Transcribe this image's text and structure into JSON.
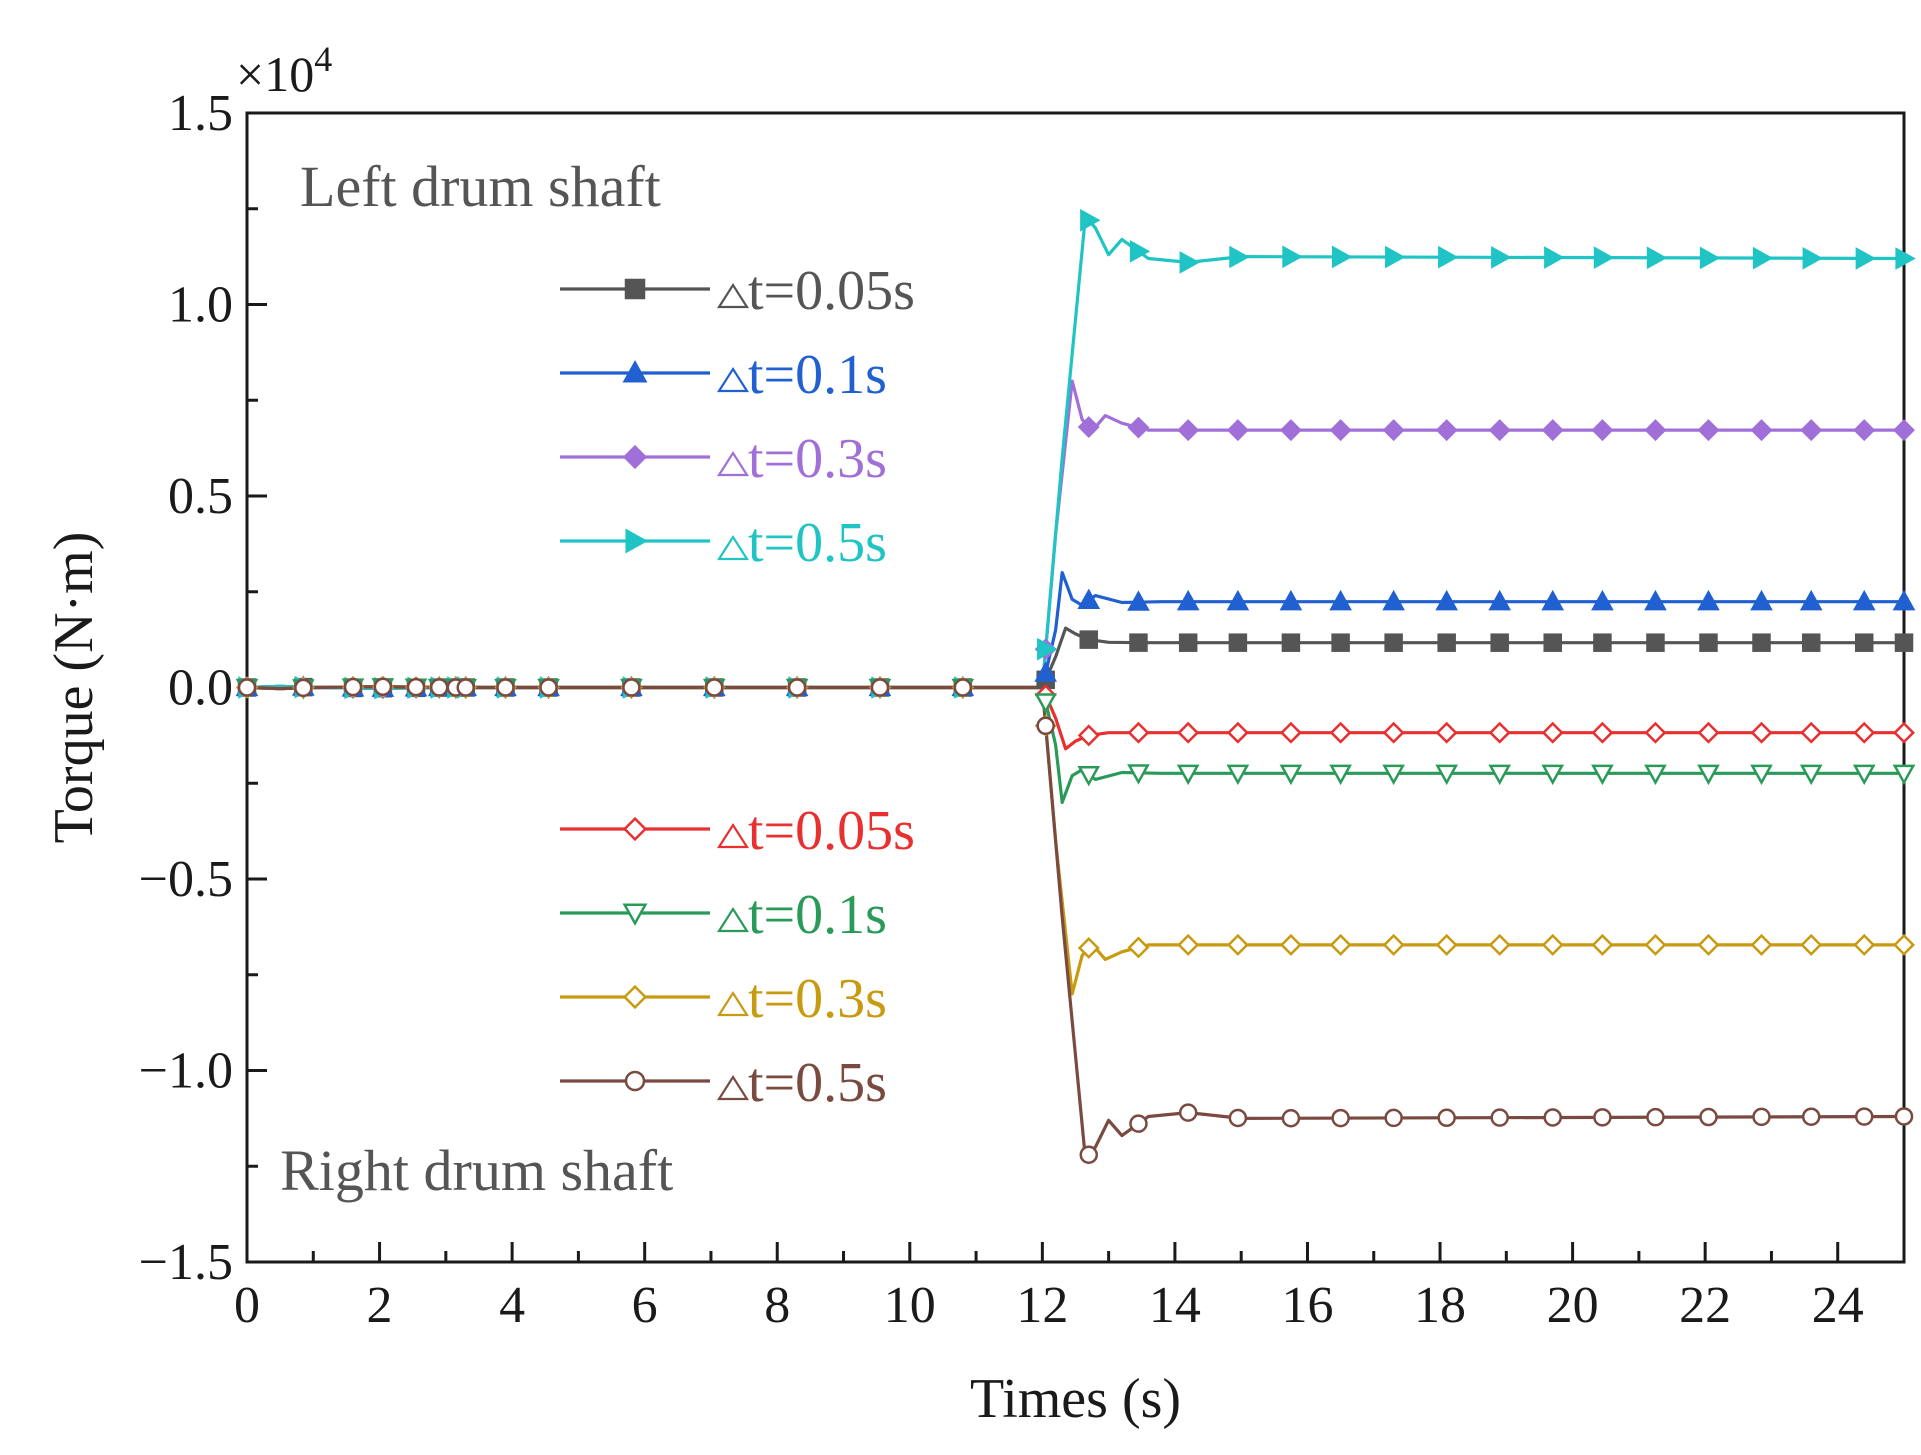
{
  "chart_data": {
    "type": "line",
    "title": "",
    "xlabel": "Times (s)",
    "ylabel": "Torque (N·m)",
    "xlim": [
      0,
      25
    ],
    "ylim": [
      -1.5,
      1.5
    ],
    "y_multiplier": "×10",
    "y_multiplier_exp": "4",
    "x_ticks": [
      0,
      2,
      4,
      6,
      8,
      10,
      12,
      14,
      16,
      18,
      20,
      22,
      24
    ],
    "y_ticks": [
      -1.5,
      -1.0,
      -0.5,
      0.0,
      0.5,
      1.0,
      1.5
    ],
    "y_tick_labels": [
      "−1.5",
      "−1.0",
      "−0.5",
      "0.0",
      "0.5",
      "1.0",
      "1.5"
    ],
    "grid": false,
    "annotations": [
      {
        "text": "Left drum shaft",
        "x": 0.8,
        "y": 1.31
      },
      {
        "text": "Right drum shaft",
        "x": 0.5,
        "y": -1.26
      }
    ],
    "series": [
      {
        "name": "t=0.05s",
        "group": "left",
        "color": "#555555",
        "marker": "square",
        "filled": true,
        "x": [
          0,
          0.5,
          1,
          2,
          3,
          4,
          5,
          6,
          7,
          8,
          9,
          10,
          11,
          12,
          12.2,
          12.35,
          12.5,
          12.7,
          13,
          13.5,
          14,
          25
        ],
        "y": [
          0,
          0.003,
          0,
          -0.002,
          0,
          0,
          0,
          0,
          0,
          0,
          0,
          0,
          0,
          0,
          0.08,
          0.155,
          0.14,
          0.125,
          0.118,
          0.117,
          0.117,
          0.117
        ]
      },
      {
        "name": "t=0.1s",
        "group": "left",
        "color": "#2060d0",
        "marker": "triangle-up",
        "filled": true,
        "x": [
          0,
          0.5,
          1,
          2,
          3,
          4,
          5,
          6,
          7,
          8,
          9,
          10,
          11,
          12,
          12.2,
          12.3,
          12.45,
          12.6,
          12.8,
          13.2,
          13.8,
          25
        ],
        "y": [
          0,
          0.003,
          0,
          -0.002,
          0,
          0,
          0,
          0,
          0,
          0,
          0,
          0,
          0,
          0,
          0.15,
          0.3,
          0.23,
          0.215,
          0.24,
          0.222,
          0.224,
          0.224
        ]
      },
      {
        "name": "t=0.3s",
        "group": "left",
        "color": "#a070d8",
        "marker": "diamond",
        "filled": true,
        "x": [
          0,
          0.5,
          1,
          2,
          3,
          4,
          5,
          6,
          7,
          8,
          9,
          10,
          11,
          12,
          12.2,
          12.45,
          12.6,
          12.75,
          12.95,
          13.2,
          13.6,
          25
        ],
        "y": [
          0,
          0.003,
          0,
          -0.002,
          0,
          0,
          0,
          0,
          0,
          0,
          0,
          0,
          0,
          0,
          0.4,
          0.8,
          0.7,
          0.67,
          0.71,
          0.69,
          0.672,
          0.672
        ]
      },
      {
        "name": "t=0.5s",
        "group": "left",
        "color": "#20c4c4",
        "marker": "triangle-right",
        "filled": true,
        "x": [
          0,
          0.5,
          1,
          2,
          3,
          4,
          5,
          6,
          7,
          8,
          9,
          10,
          11,
          12,
          12.3,
          12.65,
          12.8,
          13.0,
          13.2,
          13.6,
          14.2,
          15,
          25
        ],
        "y": [
          0,
          0.003,
          0,
          -0.002,
          0,
          0,
          0,
          0,
          0,
          0,
          0,
          0,
          0,
          0,
          0.6,
          1.23,
          1.2,
          1.13,
          1.17,
          1.12,
          1.11,
          1.125,
          1.12
        ]
      },
      {
        "name": "t=0.05s",
        "group": "right",
        "color": "#e83030",
        "marker": "diamond",
        "filled": false,
        "x": [
          0,
          0.5,
          1,
          2,
          3,
          4,
          5,
          6,
          7,
          8,
          9,
          10,
          11,
          12,
          12.2,
          12.35,
          12.5,
          12.7,
          13,
          13.5,
          25
        ],
        "y": [
          0,
          -0.003,
          0,
          0.002,
          0,
          0,
          0,
          0,
          0,
          0,
          0,
          0,
          0,
          0,
          -0.08,
          -0.16,
          -0.14,
          -0.125,
          -0.118,
          -0.118,
          -0.118
        ]
      },
      {
        "name": "t=0.1s",
        "group": "right",
        "color": "#2a9a58",
        "marker": "triangle-down",
        "filled": false,
        "x": [
          0,
          0.5,
          1,
          2,
          3,
          4,
          5,
          6,
          7,
          8,
          9,
          10,
          11,
          12,
          12.2,
          12.3,
          12.45,
          12.6,
          12.8,
          13.2,
          13.8,
          25
        ],
        "y": [
          0,
          -0.003,
          0,
          0.002,
          0,
          0,
          0,
          0,
          0,
          0,
          0,
          0,
          0,
          0,
          -0.15,
          -0.3,
          -0.23,
          -0.215,
          -0.24,
          -0.222,
          -0.224,
          -0.224
        ]
      },
      {
        "name": "t=0.3s",
        "group": "right",
        "color": "#c89a10",
        "marker": "diamond",
        "filled": false,
        "x": [
          0,
          0.5,
          1,
          2,
          3,
          4,
          5,
          6,
          7,
          8,
          9,
          10,
          11,
          12,
          12.2,
          12.45,
          12.6,
          12.75,
          12.95,
          13.2,
          13.6,
          25
        ],
        "y": [
          0,
          -0.003,
          0,
          0.002,
          0,
          0,
          0,
          0,
          0,
          0,
          0,
          0,
          0,
          0,
          -0.4,
          -0.8,
          -0.7,
          -0.67,
          -0.71,
          -0.69,
          -0.672,
          -0.672
        ]
      },
      {
        "name": "t=0.5s",
        "group": "right",
        "color": "#7a4a40",
        "marker": "circle",
        "filled": false,
        "x": [
          0,
          0.5,
          1,
          2,
          3,
          4,
          5,
          6,
          7,
          8,
          9,
          10,
          11,
          12,
          12.3,
          12.65,
          12.8,
          13.0,
          13.2,
          13.6,
          14.2,
          15,
          25
        ],
        "y": [
          0,
          -0.003,
          0,
          0.002,
          0,
          0,
          0,
          0,
          0,
          0,
          0,
          0,
          0,
          0,
          -0.6,
          -1.23,
          -1.2,
          -1.13,
          -1.17,
          -1.12,
          -1.11,
          -1.125,
          -1.12
        ]
      }
    ],
    "marker_x": [
      0,
      0.85,
      1.6,
      2.05,
      2.55,
      2.9,
      3.15,
      3.3,
      3.9,
      4.55,
      5.8,
      7.05,
      8.3,
      9.55,
      10.8,
      12.05,
      12.7,
      13.45,
      14.2,
      14.95,
      15.75,
      16.5,
      17.3,
      18.1,
      18.9,
      19.7,
      20.45,
      21.25,
      22.05,
      22.85,
      23.6,
      24.4,
      25
    ]
  }
}
